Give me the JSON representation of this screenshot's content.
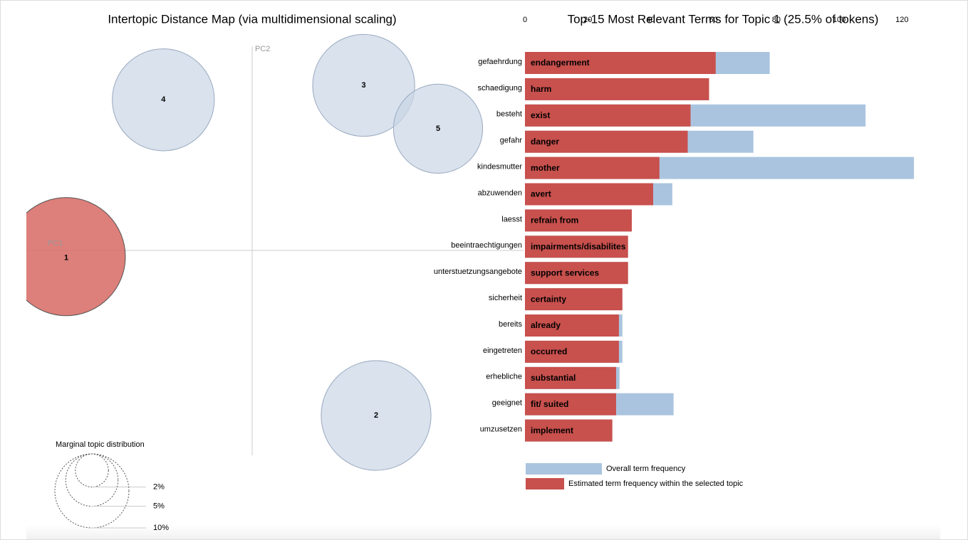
{
  "chart_data": [
    {
      "type": "scatter",
      "title": "Intertopic Distance Map (via multidimensional scaling)",
      "xlabel": "PC1",
      "ylabel": "PC2",
      "labels": [
        "1",
        "2",
        "3",
        "4",
        "5"
      ],
      "x": [
        -0.9,
        0.6,
        0.54,
        -0.43,
        0.9
      ],
      "y": [
        -0.03,
        -0.8,
        0.8,
        0.73,
        0.59
      ],
      "sizes": [
        25.5,
        22,
        19,
        19,
        14.5
      ],
      "colors": [
        "#d9716b",
        "#c9d6e6",
        "#c9d6e6",
        "#c9d6e6",
        "#c9d6e6"
      ],
      "xlim": [
        -1.1,
        1.1
      ],
      "ylim": [
        -1,
        1
      ],
      "size_legend": {
        "title": "Marginal topic distribution",
        "ticks": [
          {
            "value": 2,
            "label": "2%"
          },
          {
            "value": 5,
            "label": "5%"
          },
          {
            "value": 10,
            "label": "10%"
          }
        ]
      }
    },
    {
      "type": "bar",
      "orientation": "horizontal",
      "title": "Top-15 Most Relevant Terms for Topic 1 (25.5% of tokens)",
      "categories": [
        "gefaehrdung",
        "schaedigung",
        "besteht",
        "gefahr",
        "kindesmutter",
        "abzuwenden",
        "laesst",
        "beeintraechtigungen",
        "unterstuetzungsangebote",
        "sicherheit",
        "bereits",
        "eingetreten",
        "erhebliche",
        "geeignet",
        "umzusetzen"
      ],
      "annotations": [
        "endangerment",
        "harm",
        "exist",
        "danger",
        "mother",
        "avert",
        "refrain from",
        "impairments/disabilites",
        "support services",
        "certainty",
        "already",
        "occurred",
        "substantial",
        "fit/ suited",
        "implement"
      ],
      "series": [
        {
          "name": "Overall term frequency",
          "color": "#aac4df",
          "values": [
            77.9,
            58.6,
            108.4,
            72.7,
            123.8,
            46.9,
            34.0,
            32.8,
            32.8,
            31.0,
            31.0,
            31.0,
            30.1,
            47.3,
            27.8
          ]
        },
        {
          "name": "Estimated term frequency within the selected topic",
          "color": "#c8504d",
          "values": [
            60.7,
            58.6,
            52.7,
            51.8,
            42.8,
            40.8,
            34.0,
            32.8,
            32.8,
            31.0,
            29.9,
            29.9,
            29.0,
            29.0,
            27.8
          ]
        }
      ],
      "xlim": [
        0,
        124
      ],
      "xticks": [
        0,
        20,
        40,
        60,
        80,
        100,
        120
      ]
    }
  ]
}
